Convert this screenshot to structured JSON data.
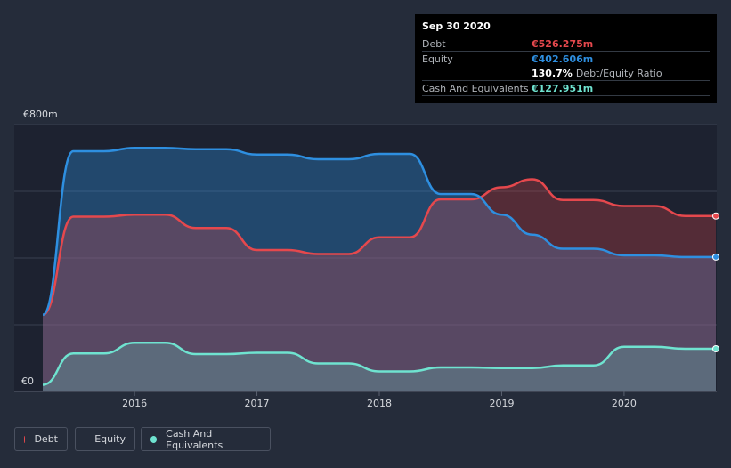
{
  "tooltip": {
    "date": "Sep 30 2020",
    "debt_label": "Debt",
    "debt_value": "€526.275m",
    "equity_label": "Equity",
    "equity_value": "€402.606m",
    "ratio_value": "130.7%",
    "ratio_label": "Debt/Equity Ratio",
    "cash_label": "Cash And Equivalents",
    "cash_value": "€127.951m"
  },
  "legend": {
    "debt": "Debt",
    "equity": "Equity",
    "cash": "Cash And Equivalents"
  },
  "colors": {
    "debt": "#e5484d",
    "equity": "#2e8fe0",
    "cash": "#6fe3d0",
    "background": "#252c3a"
  },
  "chart_data": {
    "type": "area",
    "y_axis_labels": [
      "€800m",
      "€0"
    ],
    "ylim": [
      0,
      800
    ],
    "xlim": [
      2015.25,
      2020.75
    ],
    "x_ticks": [
      {
        "value": 2016,
        "label": "2016"
      },
      {
        "value": 2017,
        "label": "2017"
      },
      {
        "value": 2018,
        "label": "2018"
      },
      {
        "value": 2019,
        "label": "2019"
      },
      {
        "value": 2020,
        "label": "2020"
      }
    ],
    "grid": true,
    "series": [
      {
        "name": "Debt",
        "color": "#e5484d",
        "points": [
          [
            2015.25,
            230
          ],
          [
            2015.5,
            524
          ],
          [
            2015.75,
            524
          ],
          [
            2016.0,
            530
          ],
          [
            2016.25,
            530
          ],
          [
            2016.5,
            490
          ],
          [
            2016.75,
            490
          ],
          [
            2017.0,
            424
          ],
          [
            2017.25,
            424
          ],
          [
            2017.5,
            412
          ],
          [
            2017.75,
            412
          ],
          [
            2018.0,
            462
          ],
          [
            2018.25,
            462
          ],
          [
            2018.5,
            576
          ],
          [
            2018.75,
            576
          ],
          [
            2019.0,
            612
          ],
          [
            2019.25,
            636
          ],
          [
            2019.5,
            574
          ],
          [
            2019.75,
            574
          ],
          [
            2020.0,
            556
          ],
          [
            2020.25,
            556
          ],
          [
            2020.5,
            526
          ],
          [
            2020.75,
            526
          ]
        ]
      },
      {
        "name": "Equity",
        "color": "#2e8fe0",
        "points": [
          [
            2015.25,
            230
          ],
          [
            2015.5,
            720
          ],
          [
            2015.75,
            720
          ],
          [
            2016.0,
            730
          ],
          [
            2016.25,
            730
          ],
          [
            2016.5,
            726
          ],
          [
            2016.75,
            726
          ],
          [
            2017.0,
            710
          ],
          [
            2017.25,
            710
          ],
          [
            2017.5,
            696
          ],
          [
            2017.75,
            696
          ],
          [
            2018.0,
            712
          ],
          [
            2018.25,
            712
          ],
          [
            2018.5,
            592
          ],
          [
            2018.75,
            592
          ],
          [
            2019.0,
            530
          ],
          [
            2019.25,
            470
          ],
          [
            2019.5,
            428
          ],
          [
            2019.75,
            428
          ],
          [
            2020.0,
            408
          ],
          [
            2020.25,
            408
          ],
          [
            2020.5,
            403
          ],
          [
            2020.75,
            403
          ]
        ]
      },
      {
        "name": "Cash And Equivalents",
        "color": "#6fe3d0",
        "points": [
          [
            2015.25,
            20
          ],
          [
            2015.5,
            114
          ],
          [
            2015.75,
            114
          ],
          [
            2016.0,
            146
          ],
          [
            2016.25,
            146
          ],
          [
            2016.5,
            112
          ],
          [
            2016.75,
            112
          ],
          [
            2017.0,
            116
          ],
          [
            2017.25,
            116
          ],
          [
            2017.5,
            84
          ],
          [
            2017.75,
            84
          ],
          [
            2018.0,
            60
          ],
          [
            2018.25,
            60
          ],
          [
            2018.5,
            72
          ],
          [
            2018.75,
            72
          ],
          [
            2019.0,
            70
          ],
          [
            2019.25,
            70
          ],
          [
            2019.5,
            78
          ],
          [
            2019.75,
            78
          ],
          [
            2020.0,
            134
          ],
          [
            2020.25,
            134
          ],
          [
            2020.5,
            128
          ],
          [
            2020.75,
            128
          ]
        ]
      }
    ]
  }
}
